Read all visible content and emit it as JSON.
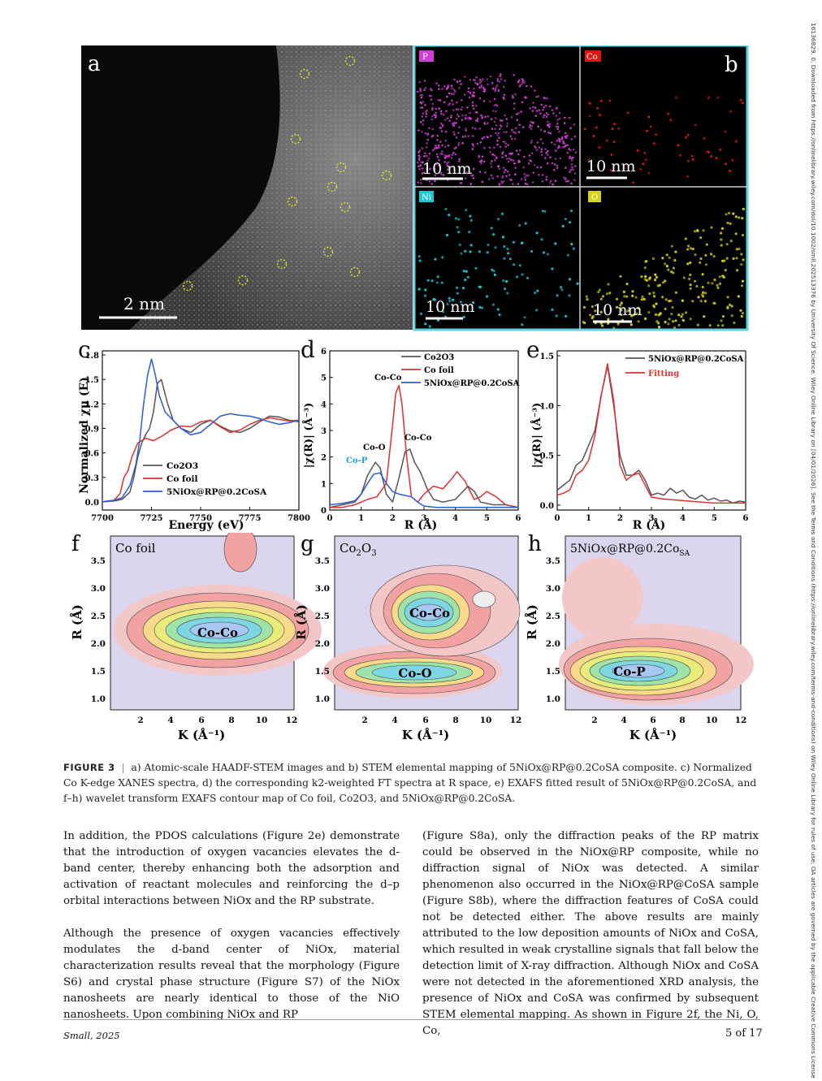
{
  "sidebar_text": "16136829, 0, Downloaded from https://onlinelibrary.wiley.com/doi/10.1002/smll.202513376 by University Of Science, Wiley Online Library on [04/01/2026]. See the Terms and Conditions (https://onlinelibrary.wiley.com/terms-and-conditions) on Wiley Online Library for rules of use; OA articles are governed by the applicable Creative Commons License",
  "figure": {
    "a": {
      "label": "a",
      "scale": "2 nm"
    },
    "b": {
      "label": "b",
      "tiles": [
        {
          "tag": "P",
          "scale": "10 nm",
          "color": "#d23fd6"
        },
        {
          "tag": "Co",
          "scale": "10 nm",
          "color": "#e01414"
        },
        {
          "tag": "Ni",
          "scale": "10 nm",
          "color": "#1fc6d2"
        },
        {
          "tag": "O",
          "scale": "10 nm",
          "color": "#d8d31a"
        }
      ]
    },
    "c": {
      "label": "c",
      "xlabel": "Energy (eV)",
      "ylabel": "Normalized χμ (E)",
      "legend": [
        "Co2O3",
        "Co foil",
        "5NiOx@RP@0.2CoSA"
      ]
    },
    "d": {
      "label": "d",
      "xlabel": "R (Å)",
      "ylabel": "|χ(R)| (Å⁻³)",
      "legend": [
        "Co2O3",
        "Co foil",
        "5NiOx@RP@0.2CoSA"
      ],
      "annotations": [
        "Co-Co",
        "Co-O",
        "Co-P",
        "Co-Co"
      ]
    },
    "e": {
      "label": "e",
      "xlabel": "R (Å)",
      "ylabel": "|χ(R)| (Å⁻³)",
      "legend": [
        "5NiOx@RP@0.2CoSA",
        "Fitting"
      ]
    },
    "f": {
      "label": "f",
      "title": "Co foil",
      "peak": "Co-Co",
      "xlabel": "K (Å⁻¹)",
      "ylabel": "R (Å)"
    },
    "g": {
      "label": "g",
      "title": "Co2O3",
      "peaks": [
        "Co-Co",
        "Co-O"
      ],
      "xlabel": "K (Å⁻¹)",
      "ylabel": "R (Å)"
    },
    "h": {
      "label": "h",
      "title": "5NiOx@RP@0.2CoSA",
      "peak": "Co-P",
      "xlabel": "K (Å⁻¹)",
      "ylabel": "R (Å)"
    }
  },
  "chart_data": [
    {
      "panel": "c",
      "type": "line",
      "xlabel": "Energy (eV)",
      "ylabel": "Normalized χμ (E)",
      "xlim": [
        7700,
        7800
      ],
      "ylim": [
        -0.1,
        1.85
      ],
      "xticks": [
        7700,
        7725,
        7750,
        7775,
        7800
      ],
      "yticks": [
        0.0,
        0.3,
        0.6,
        0.9,
        1.2,
        1.5,
        1.8
      ],
      "series": [
        {
          "name": "Co2O3",
          "color": "#555555",
          "x": [
            7700,
            7706,
            7710,
            7714,
            7716,
            7718,
            7720,
            7722,
            7724,
            7726,
            7728,
            7730,
            7733,
            7736,
            7740,
            7745,
            7750,
            7755,
            7760,
            7765,
            7770,
            7775,
            7780,
            7785,
            7790,
            7795,
            7800
          ],
          "y": [
            0.0,
            0.01,
            0.03,
            0.12,
            0.3,
            0.55,
            0.72,
            0.82,
            0.9,
            1.1,
            1.45,
            1.5,
            1.22,
            1.0,
            0.9,
            0.85,
            0.95,
            1.0,
            0.93,
            0.87,
            0.85,
            0.9,
            0.98,
            1.05,
            1.04,
            1.0,
            0.98
          ]
        },
        {
          "name": "Co foil",
          "color": "#e03030",
          "x": [
            7700,
            7706,
            7709,
            7711,
            7713,
            7715,
            7718,
            7722,
            7726,
            7730,
            7735,
            7740,
            7745,
            7750,
            7755,
            7760,
            7765,
            7770,
            7775,
            7780,
            7785,
            7790,
            7795,
            7800
          ],
          "y": [
            0.0,
            0.02,
            0.1,
            0.3,
            0.38,
            0.55,
            0.72,
            0.78,
            0.75,
            0.8,
            0.88,
            0.93,
            0.92,
            0.98,
            1.0,
            0.92,
            0.85,
            0.88,
            0.95,
            1.0,
            1.03,
            1.01,
            0.99,
            1.0
          ]
        },
        {
          "name": "5NiOx@RP@0.2CoSA",
          "color": "#2a5bdc",
          "x": [
            7700,
            7706,
            7710,
            7714,
            7717,
            7719,
            7721,
            7723,
            7725,
            7727,
            7729,
            7732,
            7736,
            7740,
            7745,
            7750,
            7755,
            7760,
            7765,
            7770,
            7775,
            7780,
            7785,
            7790,
            7795,
            7800
          ],
          "y": [
            0.0,
            0.02,
            0.05,
            0.2,
            0.45,
            0.75,
            1.2,
            1.55,
            1.75,
            1.55,
            1.3,
            1.1,
            1.0,
            0.9,
            0.82,
            0.85,
            0.95,
            1.05,
            1.08,
            1.06,
            1.05,
            1.02,
            0.98,
            0.95,
            0.97,
            1.0
          ]
        }
      ]
    },
    {
      "panel": "d",
      "type": "line",
      "xlabel": "R (Å)",
      "ylabel": "|χ(R)| (Å⁻³)",
      "xlim": [
        0,
        6
      ],
      "ylim": [
        0,
        6
      ],
      "xticks": [
        0,
        1,
        2,
        3,
        4,
        5,
        6
      ],
      "yticks": [
        0,
        1,
        2,
        3,
        4,
        5,
        6
      ],
      "series": [
        {
          "name": "Co2O3",
          "color": "#555555",
          "x": [
            0,
            0.4,
            0.8,
            1.0,
            1.2,
            1.45,
            1.6,
            1.8,
            2.0,
            2.2,
            2.4,
            2.55,
            2.7,
            2.9,
            3.1,
            3.3,
            3.6,
            4.0,
            4.4,
            4.6,
            4.8,
            5.2,
            5.6,
            6.0
          ],
          "y": [
            0.1,
            0.2,
            0.3,
            0.6,
            1.3,
            1.8,
            1.6,
            0.6,
            0.3,
            1.2,
            2.2,
            2.3,
            1.8,
            1.4,
            0.8,
            0.4,
            0.3,
            0.4,
            0.9,
            0.7,
            0.3,
            0.2,
            0.2,
            0.1
          ]
        },
        {
          "name": "Co foil",
          "color": "#e03030",
          "x": [
            0,
            0.4,
            0.8,
            1.2,
            1.5,
            1.8,
            2.0,
            2.1,
            2.2,
            2.3,
            2.45,
            2.6,
            2.8,
            3.0,
            3.3,
            3.6,
            3.9,
            4.05,
            4.3,
            4.6,
            4.8,
            5.0,
            5.3,
            5.6,
            6.0
          ],
          "y": [
            0.1,
            0.1,
            0.2,
            0.4,
            0.5,
            1.0,
            3.2,
            4.4,
            4.7,
            4.0,
            2.0,
            0.5,
            0.3,
            0.6,
            0.9,
            0.8,
            1.2,
            1.45,
            1.1,
            0.4,
            0.5,
            0.7,
            0.5,
            0.2,
            0.1
          ]
        },
        {
          "name": "5NiOx@RP@0.2CoSA",
          "color": "#2a5bdc",
          "x": [
            0,
            0.4,
            0.8,
            1.0,
            1.2,
            1.4,
            1.6,
            1.8,
            2.0,
            2.2,
            2.4,
            2.6,
            2.8,
            3.0,
            3.4,
            3.8,
            4.2,
            4.6,
            5.0,
            5.5,
            6.0
          ],
          "y": [
            0.2,
            0.25,
            0.35,
            0.6,
            1.0,
            1.35,
            1.4,
            1.0,
            0.7,
            0.6,
            0.55,
            0.5,
            0.3,
            0.15,
            0.1,
            0.1,
            0.1,
            0.1,
            0.1,
            0.1,
            0.1
          ]
        }
      ]
    },
    {
      "panel": "e",
      "type": "line",
      "xlabel": "R (Å)",
      "ylabel": "|χ(R)| (Å⁻³)",
      "xlim": [
        0,
        6
      ],
      "ylim": [
        -0.05,
        1.55
      ],
      "xticks": [
        0,
        1,
        2,
        3,
        4,
        5,
        6
      ],
      "yticks": [
        0.0,
        0.5,
        1.0,
        1.5
      ],
      "series": [
        {
          "name": "5NiOx@RP@0.2CoSA",
          "color": "#555555",
          "x": [
            0,
            0.2,
            0.4,
            0.6,
            0.8,
            1.0,
            1.2,
            1.4,
            1.6,
            1.8,
            2.0,
            2.2,
            2.4,
            2.6,
            2.8,
            3.0,
            3.2,
            3.4,
            3.6,
            3.8,
            4.0,
            4.2,
            4.4,
            4.6,
            4.8,
            5.0,
            5.2,
            5.4,
            5.6,
            5.8,
            6.0
          ],
          "y": [
            0.15,
            0.2,
            0.25,
            0.4,
            0.45,
            0.6,
            0.75,
            1.1,
            1.4,
            1.0,
            0.5,
            0.3,
            0.3,
            0.35,
            0.25,
            0.1,
            0.12,
            0.1,
            0.17,
            0.12,
            0.15,
            0.08,
            0.06,
            0.1,
            0.05,
            0.07,
            0.04,
            0.05,
            0.02,
            0.04,
            0.03
          ]
        },
        {
          "name": "Fitting",
          "color": "#e03030",
          "x": [
            0,
            0.2,
            0.4,
            0.6,
            0.8,
            1.0,
            1.2,
            1.4,
            1.6,
            1.8,
            2.0,
            2.2,
            2.4,
            2.6,
            2.8,
            3.0,
            3.4,
            3.8,
            4.2,
            4.6,
            5.0,
            5.5,
            6.0
          ],
          "y": [
            0.1,
            0.12,
            0.15,
            0.3,
            0.35,
            0.45,
            0.7,
            1.1,
            1.42,
            1.05,
            0.4,
            0.25,
            0.3,
            0.32,
            0.2,
            0.08,
            0.06,
            0.05,
            0.04,
            0.03,
            0.02,
            0.02,
            0.02
          ]
        }
      ]
    }
  ],
  "caption": {
    "head": "FIGURE 3",
    "text": "a) Atomic-scale HAADF-STEM images and b) STEM elemental mapping of 5NiOx@RP@0.2CoSA composite. c) Normalized Co K-edge XANES spectra, d) the corresponding k2-weighted FT spectra at R space, e) EXAFS fitted result of 5NiOx@RP@0.2CoSA, and f–h) wavelet transform EXAFS contour map of Co foil, Co2O3, and 5NiOx@RP@0.2CoSA."
  },
  "body": {
    "p1": "In addition, the PDOS calculations (Figure 2e) demonstrate that the introduction of oxygen vacancies elevates the d-band center, thereby enhancing both the adsorption and activation of reactant molecules and reinforcing the d–p orbital interactions between NiOx and the RP substrate.",
    "p2": "Although the presence of oxygen vacancies effectively modulates the d-band center of NiOx, material characterization results reveal that the morphology (Figure S6) and crystal phase structure (Figure S7) of the NiOx nanosheets are nearly identical to those of the NiO nanosheets. Upon combining NiOx and RP",
    "p3": "(Figure S8a), only the diffraction peaks of the RP matrix could be observed in the NiOx@RP composite, while no diffraction signal of NiOx was detected. A similar phenomenon also occurred in the NiOx@RP@CoSA sample (Figure S8b), where the diffraction features of CoSA could not be detected either. The above results are mainly attributed to the low deposition amounts of NiOx and CoSA, which resulted in weak crystalline signals that fall below the detection limit of X-ray diffraction. Although NiOx and CoSA were not detected in the aforementioned XRD analysis, the presence of NiOx and CoSA was confirmed by subsequent STEM elemental mapping. As shown in Figure 2f, the Ni, O, Co,"
  },
  "footer": {
    "journal": "Small, 2025",
    "page": "5 of 17"
  }
}
